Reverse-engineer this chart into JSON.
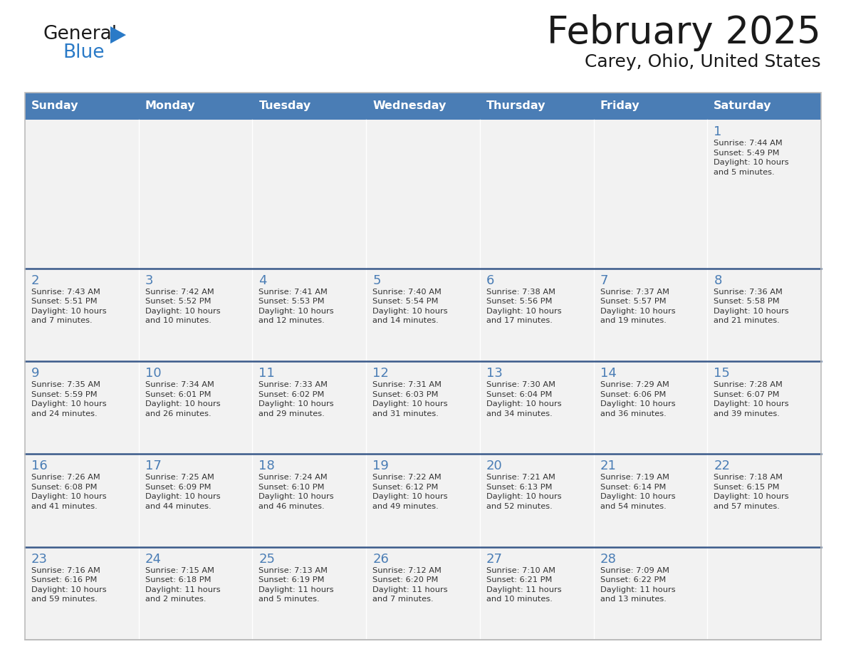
{
  "title": "February 2025",
  "subtitle": "Carey, Ohio, United States",
  "header_bg": "#4a7db5",
  "header_text_color": "#ffffff",
  "cell_bg": "#f2f2f2",
  "day_headers": [
    "Sunday",
    "Monday",
    "Tuesday",
    "Wednesday",
    "Thursday",
    "Friday",
    "Saturday"
  ],
  "title_color": "#1a1a1a",
  "subtitle_color": "#1a1a1a",
  "day_num_color": "#4a7db5",
  "cell_text_color": "#333333",
  "row_sep_color": "#3a5a8a",
  "outer_border_color": "#bbbbbb",
  "logo_general_color": "#1a1a1a",
  "logo_blue_color": "#2a7ac7",
  "logo_triangle_color": "#2a7ac7",
  "calendar_data": [
    [
      {
        "day": null,
        "info": null
      },
      {
        "day": null,
        "info": null
      },
      {
        "day": null,
        "info": null
      },
      {
        "day": null,
        "info": null
      },
      {
        "day": null,
        "info": null
      },
      {
        "day": null,
        "info": null
      },
      {
        "day": 1,
        "info": "Sunrise: 7:44 AM\nSunset: 5:49 PM\nDaylight: 10 hours\nand 5 minutes."
      }
    ],
    [
      {
        "day": 2,
        "info": "Sunrise: 7:43 AM\nSunset: 5:51 PM\nDaylight: 10 hours\nand 7 minutes."
      },
      {
        "day": 3,
        "info": "Sunrise: 7:42 AM\nSunset: 5:52 PM\nDaylight: 10 hours\nand 10 minutes."
      },
      {
        "day": 4,
        "info": "Sunrise: 7:41 AM\nSunset: 5:53 PM\nDaylight: 10 hours\nand 12 minutes."
      },
      {
        "day": 5,
        "info": "Sunrise: 7:40 AM\nSunset: 5:54 PM\nDaylight: 10 hours\nand 14 minutes."
      },
      {
        "day": 6,
        "info": "Sunrise: 7:38 AM\nSunset: 5:56 PM\nDaylight: 10 hours\nand 17 minutes."
      },
      {
        "day": 7,
        "info": "Sunrise: 7:37 AM\nSunset: 5:57 PM\nDaylight: 10 hours\nand 19 minutes."
      },
      {
        "day": 8,
        "info": "Sunrise: 7:36 AM\nSunset: 5:58 PM\nDaylight: 10 hours\nand 21 minutes."
      }
    ],
    [
      {
        "day": 9,
        "info": "Sunrise: 7:35 AM\nSunset: 5:59 PM\nDaylight: 10 hours\nand 24 minutes."
      },
      {
        "day": 10,
        "info": "Sunrise: 7:34 AM\nSunset: 6:01 PM\nDaylight: 10 hours\nand 26 minutes."
      },
      {
        "day": 11,
        "info": "Sunrise: 7:33 AM\nSunset: 6:02 PM\nDaylight: 10 hours\nand 29 minutes."
      },
      {
        "day": 12,
        "info": "Sunrise: 7:31 AM\nSunset: 6:03 PM\nDaylight: 10 hours\nand 31 minutes."
      },
      {
        "day": 13,
        "info": "Sunrise: 7:30 AM\nSunset: 6:04 PM\nDaylight: 10 hours\nand 34 minutes."
      },
      {
        "day": 14,
        "info": "Sunrise: 7:29 AM\nSunset: 6:06 PM\nDaylight: 10 hours\nand 36 minutes."
      },
      {
        "day": 15,
        "info": "Sunrise: 7:28 AM\nSunset: 6:07 PM\nDaylight: 10 hours\nand 39 minutes."
      }
    ],
    [
      {
        "day": 16,
        "info": "Sunrise: 7:26 AM\nSunset: 6:08 PM\nDaylight: 10 hours\nand 41 minutes."
      },
      {
        "day": 17,
        "info": "Sunrise: 7:25 AM\nSunset: 6:09 PM\nDaylight: 10 hours\nand 44 minutes."
      },
      {
        "day": 18,
        "info": "Sunrise: 7:24 AM\nSunset: 6:10 PM\nDaylight: 10 hours\nand 46 minutes."
      },
      {
        "day": 19,
        "info": "Sunrise: 7:22 AM\nSunset: 6:12 PM\nDaylight: 10 hours\nand 49 minutes."
      },
      {
        "day": 20,
        "info": "Sunrise: 7:21 AM\nSunset: 6:13 PM\nDaylight: 10 hours\nand 52 minutes."
      },
      {
        "day": 21,
        "info": "Sunrise: 7:19 AM\nSunset: 6:14 PM\nDaylight: 10 hours\nand 54 minutes."
      },
      {
        "day": 22,
        "info": "Sunrise: 7:18 AM\nSunset: 6:15 PM\nDaylight: 10 hours\nand 57 minutes."
      }
    ],
    [
      {
        "day": 23,
        "info": "Sunrise: 7:16 AM\nSunset: 6:16 PM\nDaylight: 10 hours\nand 59 minutes."
      },
      {
        "day": 24,
        "info": "Sunrise: 7:15 AM\nSunset: 6:18 PM\nDaylight: 11 hours\nand 2 minutes."
      },
      {
        "day": 25,
        "info": "Sunrise: 7:13 AM\nSunset: 6:19 PM\nDaylight: 11 hours\nand 5 minutes."
      },
      {
        "day": 26,
        "info": "Sunrise: 7:12 AM\nSunset: 6:20 PM\nDaylight: 11 hours\nand 7 minutes."
      },
      {
        "day": 27,
        "info": "Sunrise: 7:10 AM\nSunset: 6:21 PM\nDaylight: 11 hours\nand 10 minutes."
      },
      {
        "day": 28,
        "info": "Sunrise: 7:09 AM\nSunset: 6:22 PM\nDaylight: 11 hours\nand 13 minutes."
      },
      {
        "day": null,
        "info": null
      }
    ]
  ]
}
